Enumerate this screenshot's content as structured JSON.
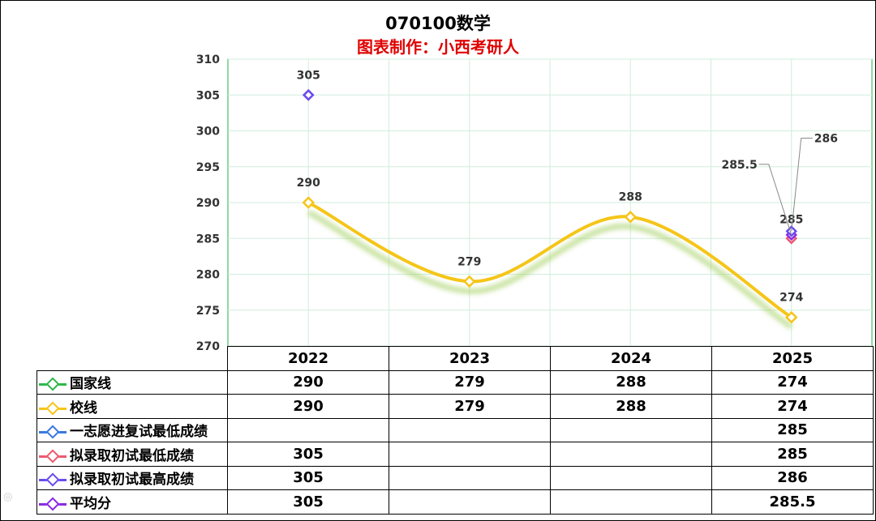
{
  "chart_data": {
    "type": "line",
    "title": "070100数学",
    "subtitle": "图表制作：小西考研人",
    "categories": [
      "2022",
      "2023",
      "2024",
      "2025"
    ],
    "ylim": [
      270,
      310
    ],
    "yticks": [
      270,
      275,
      280,
      285,
      290,
      295,
      300,
      305,
      310
    ],
    "grid": true,
    "series": [
      {
        "name": "国家线",
        "color": "#2db84a",
        "values": [
          290,
          279,
          288,
          274
        ]
      },
      {
        "name": "校线",
        "color": "#f5c518",
        "values": [
          290,
          279,
          288,
          274
        ]
      },
      {
        "name": "一志愿进复试最低成绩",
        "color": "#3a78e0",
        "values": [
          null,
          null,
          null,
          285
        ]
      },
      {
        "name": "拟录取初试最低成绩",
        "color": "#ee5a6f",
        "values": [
          305,
          null,
          null,
          285
        ]
      },
      {
        "name": "拟录取初试最高成绩",
        "color": "#6a4cf0",
        "values": [
          305,
          null,
          null,
          286
        ]
      },
      {
        "name": "平均分",
        "color": "#8a2be2",
        "values": [
          305,
          null,
          null,
          285.5
        ]
      }
    ],
    "point_labels": [
      {
        "x": "2022",
        "text": "305"
      },
      {
        "x": "2022",
        "text": "290"
      },
      {
        "x": "2023",
        "text": "279"
      },
      {
        "x": "2024",
        "text": "288"
      },
      {
        "x": "2025",
        "text": "274"
      },
      {
        "x": "2025",
        "text": "285"
      },
      {
        "x": "2025",
        "text": "285.5"
      },
      {
        "x": "2025",
        "text": "286"
      }
    ]
  },
  "table": {
    "headers": [
      "2022",
      "2023",
      "2024",
      "2025"
    ],
    "rows": [
      {
        "label": "国家线",
        "cells": [
          "290",
          "279",
          "288",
          "274"
        ]
      },
      {
        "label": "校线",
        "cells": [
          "290",
          "279",
          "288",
          "274"
        ]
      },
      {
        "label": "一志愿进复试最低成绩",
        "cells": [
          "",
          "",
          "",
          "285"
        ]
      },
      {
        "label": "拟录取初试最低成绩",
        "cells": [
          "305",
          "",
          "",
          "285"
        ]
      },
      {
        "label": "拟录取初试最高成绩",
        "cells": [
          "305",
          "",
          "",
          "286"
        ]
      },
      {
        "label": "平均分",
        "cells": [
          "305",
          "",
          "",
          "285.5"
        ]
      }
    ]
  }
}
